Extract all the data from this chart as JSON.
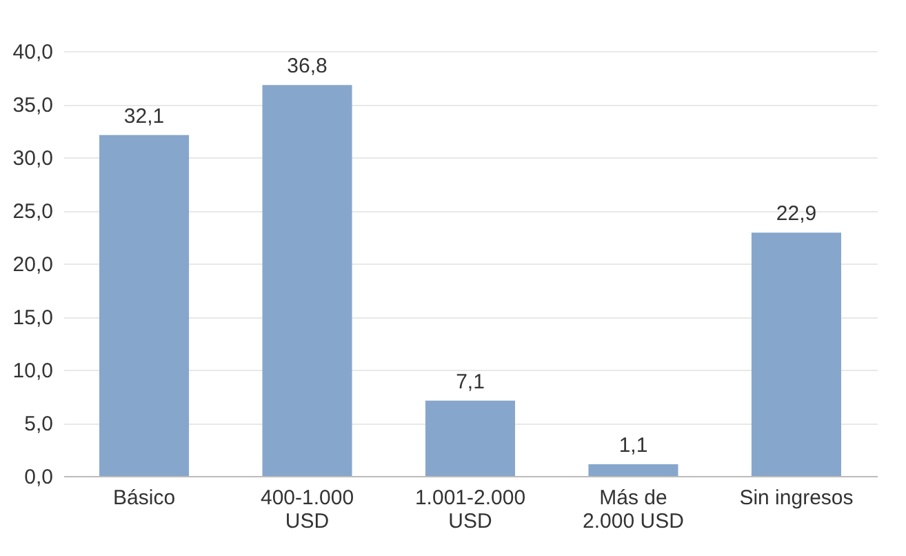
{
  "chart_data": {
    "type": "bar",
    "categories": [
      "Básico",
      "400-1.000 USD",
      "1.001-2.000 USD",
      "Más de 2.000 USD",
      "Sin ingresos"
    ],
    "values": [
      32.1,
      36.8,
      7.1,
      1.1,
      22.9
    ],
    "color": "#87a6cc",
    "value_labels": [
      "32,1",
      "36,8",
      "7,1",
      "1,1",
      "22,9"
    ],
    "ylim": [
      0,
      40
    ],
    "yticks": [
      {
        "value": 0,
        "label": "0,0"
      },
      {
        "value": 5,
        "label": "5,0"
      },
      {
        "value": 10,
        "label": "10,0"
      },
      {
        "value": 15,
        "label": "15,0"
      },
      {
        "value": 20,
        "label": "20,0"
      },
      {
        "value": 25,
        "label": "25,0"
      },
      {
        "value": 30,
        "label": "30,0"
      },
      {
        "value": 35,
        "label": "35,0"
      },
      {
        "value": 40,
        "label": "40,0"
      }
    ],
    "grid": "y"
  }
}
